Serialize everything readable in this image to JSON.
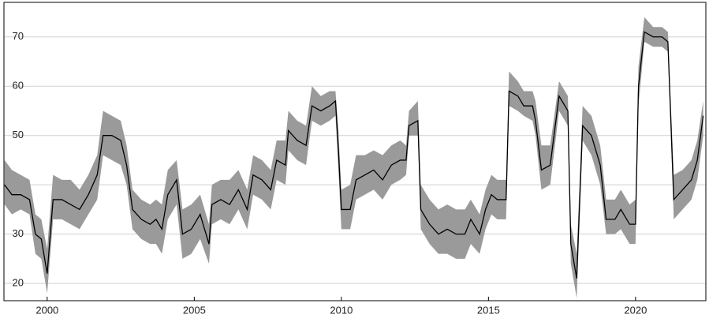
{
  "chart_data": {
    "type": "line",
    "band": true,
    "color": "#000000",
    "band_color": "#9a9a9a",
    "grid": true,
    "xlim": [
      1998.53,
      2022.39
    ],
    "ylim": [
      16.5,
      77.0
    ],
    "xticks": [
      2000,
      2005,
      2010,
      2015,
      2020
    ],
    "yticks": [
      20,
      30,
      40,
      50,
      60,
      70
    ],
    "x": [
      1998.55,
      1998.8,
      1999.1,
      1999.4,
      1999.6,
      1999.8,
      2000.0,
      2000.2,
      2000.5,
      2000.8,
      2001.1,
      2001.4,
      2001.7,
      2001.9,
      2002.2,
      2002.5,
      2002.7,
      2002.9,
      2003.2,
      2003.5,
      2003.7,
      2003.9,
      2004.1,
      2004.4,
      2004.6,
      2004.9,
      2005.2,
      2005.5,
      2005.6,
      2005.9,
      2006.2,
      2006.5,
      2006.8,
      2007.0,
      2007.3,
      2007.6,
      2007.8,
      2008.1,
      2008.2,
      2008.5,
      2008.8,
      2009.0,
      2009.3,
      2009.6,
      2009.8,
      2009.9,
      2010.0,
      2010.3,
      2010.5,
      2010.8,
      2011.1,
      2011.4,
      2011.7,
      2012.0,
      2012.2,
      2012.3,
      2012.6,
      2012.7,
      2013.0,
      2013.3,
      2013.6,
      2013.9,
      2014.2,
      2014.4,
      2014.7,
      2014.9,
      2015.1,
      2015.3,
      2015.6,
      2015.7,
      2016.0,
      2016.2,
      2016.5,
      2016.6,
      2016.8,
      2017.1,
      2017.4,
      2017.7,
      2017.8,
      2018.0,
      2018.2,
      2018.5,
      2018.8,
      2019.0,
      2019.3,
      2019.5,
      2019.8,
      2020.0,
      2020.1,
      2020.3,
      2020.6,
      2020.9,
      2021.1,
      2021.3,
      2021.6,
      2021.9,
      2022.1,
      2022.3
    ],
    "values": [
      40,
      38,
      38,
      37,
      30,
      29,
      22,
      37,
      37,
      36,
      35,
      38,
      42,
      50,
      50,
      49,
      44,
      35,
      33,
      32,
      33,
      31,
      38,
      41,
      30,
      31,
      34,
      28,
      36,
      37,
      36,
      39,
      35,
      42,
      41,
      39,
      45,
      44,
      51,
      49,
      48,
      56,
      55,
      56,
      57,
      47,
      35,
      35,
      41,
      42,
      43,
      41,
      44,
      45,
      45,
      52,
      53,
      35,
      32,
      30,
      31,
      30,
      30,
      33,
      30,
      35,
      38,
      37,
      37,
      59,
      58,
      56,
      56,
      53,
      43,
      44,
      58,
      55,
      28,
      21,
      52,
      50,
      44,
      33,
      33,
      35,
      32,
      32,
      60,
      71,
      70,
      70,
      69,
      37,
      39,
      41,
      45,
      54
    ],
    "lower": [
      36,
      34,
      35,
      34,
      26,
      25,
      18,
      33,
      33,
      32,
      31,
      34,
      37,
      46,
      45,
      44,
      40,
      31,
      29,
      28,
      28,
      26,
      33,
      36,
      25,
      26,
      29,
      24,
      32,
      33,
      32,
      35,
      31,
      38,
      37,
      35,
      41,
      40,
      47,
      45,
      44,
      53,
      52,
      53,
      54,
      43,
      31,
      31,
      37,
      38,
      39,
      37,
      40,
      41,
      42,
      50,
      50,
      31,
      28,
      26,
      26,
      25,
      25,
      28,
      26,
      31,
      34,
      33,
      33,
      56,
      55,
      54,
      53,
      50,
      39,
      40,
      55,
      52,
      24,
      17,
      49,
      46,
      40,
      30,
      30,
      31,
      28,
      28,
      56,
      69,
      68,
      68,
      67,
      33,
      35,
      37,
      41,
      50
    ],
    "upper": [
      45,
      43,
      42,
      41,
      34,
      33,
      27,
      42,
      41,
      41,
      39,
      42,
      46,
      55,
      54,
      53,
      48,
      39,
      37,
      36,
      37,
      36,
      43,
      45,
      35,
      36,
      38,
      32,
      40,
      41,
      41,
      43,
      39,
      46,
      45,
      43,
      49,
      49,
      55,
      53,
      52,
      60,
      58,
      59,
      59,
      51,
      39,
      40,
      46,
      46,
      47,
      46,
      48,
      49,
      48,
      55,
      57,
      40,
      37,
      35,
      36,
      35,
      35,
      37,
      34,
      39,
      42,
      41,
      41,
      63,
      61,
      59,
      59,
      57,
      48,
      48,
      61,
      58,
      32,
      26,
      56,
      54,
      48,
      37,
      37,
      39,
      36,
      37,
      64,
      74,
      72,
      72,
      71,
      42,
      43,
      45,
      49,
      57
    ]
  }
}
